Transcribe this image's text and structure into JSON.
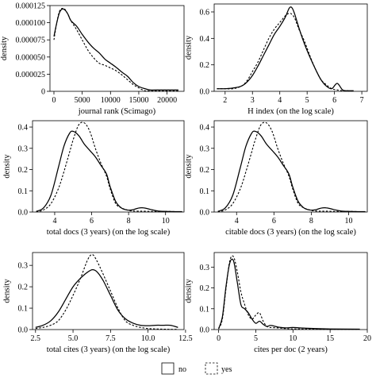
{
  "legend": {
    "placement": "bottom-center",
    "entries": [
      {
        "label": "no",
        "linestyle": "solid"
      },
      {
        "label": "yes",
        "linestyle": "dashed"
      }
    ]
  },
  "chart_data": [
    {
      "type": "line",
      "xlabel": "journal rank (Scimago)",
      "ylabel": "density",
      "xlim": [
        -700,
        23000
      ],
      "ylim": [
        0,
        0.000125
      ],
      "xticks": [
        0,
        5000,
        10000,
        15000,
        20000
      ],
      "xtick_labels": [
        "0",
        "5000",
        "10000",
        "15000",
        "20000"
      ],
      "yticks": [
        0,
        2.5e-05,
        5e-05,
        7.5e-05,
        0.0001,
        0.000125
      ],
      "ytick_labels": [
        "0",
        "0.000025",
        "0.000050",
        "0.000075",
        "0.000100",
        "0.000125"
      ],
      "series": [
        {
          "name": "no",
          "linestyle": "solid",
          "x": [
            0,
            500,
            1000,
            1500,
            2000,
            2500,
            3000,
            4000,
            5000,
            6000,
            7000,
            8000,
            9000,
            10000,
            11000,
            12000,
            13000,
            14000,
            15000,
            16000,
            17000,
            18000,
            19000,
            20000,
            21000,
            22000
          ],
          "y": [
            8e-05,
            0.0001,
            0.000115,
            0.00012,
            0.000118,
            0.000112,
            0.000103,
            9.5e-05,
            8.3e-05,
            7.2e-05,
            6.3e-05,
            5.6e-05,
            4.7e-05,
            4.1e-05,
            3.5e-05,
            2.8e-05,
            2.2e-05,
            1.3e-05,
            7e-06,
            4e-06,
            2e-06,
            2e-06,
            2e-06,
            2e-06,
            2e-06,
            2e-06
          ]
        },
        {
          "name": "yes",
          "linestyle": "dashed",
          "x": [
            0,
            500,
            1000,
            1500,
            2000,
            2500,
            3000,
            4000,
            5000,
            6000,
            7000,
            8000,
            9000,
            10000,
            11000,
            12000,
            13000,
            14000,
            15000,
            16000,
            17000,
            18000,
            19000,
            20000,
            21000,
            22000
          ],
          "y": [
            7.5e-05,
            0.0001,
            0.000117,
            0.000121,
            0.000119,
            0.000112,
            0.000103,
            9e-05,
            7.5e-05,
            6e-05,
            4.9e-05,
            4.1e-05,
            3.8e-05,
            3.4e-05,
            3e-05,
            2.4e-05,
            1.7e-05,
            1e-05,
            5e-06,
            1e-06,
            5e-07,
            5e-07,
            5e-07,
            5e-07,
            5e-07,
            5e-07
          ]
        }
      ]
    },
    {
      "type": "line",
      "xlabel": "H index (on the log scale)",
      "ylabel": "density",
      "xlim": [
        1.6,
        7.2
      ],
      "ylim": [
        0,
        0.66
      ],
      "xticks": [
        2,
        3,
        4,
        5,
        6,
        7
      ],
      "xtick_labels": [
        "2",
        "3",
        "4",
        "5",
        "6",
        "7"
      ],
      "yticks": [
        0,
        0.2,
        0.4,
        0.6
      ],
      "ytick_labels": [
        "0.0",
        "0.2",
        "0.4",
        "0.6"
      ],
      "series": [
        {
          "name": "no",
          "linestyle": "solid",
          "x": [
            1.7,
            2.0,
            2.3,
            2.6,
            2.8,
            3.0,
            3.2,
            3.4,
            3.6,
            3.8,
            4.0,
            4.2,
            4.35,
            4.45,
            4.55,
            4.7,
            4.9,
            5.1,
            5.3,
            5.5,
            5.7,
            5.9,
            6.1,
            6.3,
            6.5,
            6.7
          ],
          "y": [
            0.02,
            0.02,
            0.025,
            0.04,
            0.07,
            0.12,
            0.19,
            0.27,
            0.35,
            0.43,
            0.49,
            0.56,
            0.63,
            0.63,
            0.58,
            0.48,
            0.36,
            0.26,
            0.17,
            0.09,
            0.04,
            0.02,
            0.06,
            0.01,
            0.005,
            0.005
          ]
        },
        {
          "name": "yes",
          "linestyle": "dashed",
          "x": [
            1.7,
            2.0,
            2.3,
            2.6,
            2.8,
            3.0,
            3.2,
            3.4,
            3.6,
            3.8,
            4.0,
            4.2,
            4.35,
            4.45,
            4.55,
            4.7,
            4.9,
            5.1,
            5.3,
            5.5,
            5.7,
            5.9,
            6.1,
            6.3,
            6.5,
            6.7
          ],
          "y": [
            0.02,
            0.02,
            0.02,
            0.04,
            0.08,
            0.15,
            0.22,
            0.31,
            0.4,
            0.47,
            0.52,
            0.57,
            0.59,
            0.58,
            0.55,
            0.47,
            0.38,
            0.27,
            0.17,
            0.09,
            0.05,
            0.02,
            0.01,
            0.005,
            0.003,
            0.003
          ]
        }
      ]
    },
    {
      "type": "line",
      "xlabel": "total docs (3 years) (on the log scale)",
      "ylabel": "density",
      "xlim": [
        2.8,
        11
      ],
      "ylim": [
        0,
        0.43
      ],
      "xticks": [
        4,
        6,
        8,
        10
      ],
      "xtick_labels": [
        "4",
        "6",
        "8",
        "10"
      ],
      "yticks": [
        0,
        0.1,
        0.2,
        0.3,
        0.4
      ],
      "ytick_labels": [
        "0.0",
        "0.1",
        "0.2",
        "0.3",
        "0.4"
      ],
      "series": [
        {
          "name": "no",
          "linestyle": "solid",
          "x": [
            3.0,
            3.4,
            3.8,
            4.2,
            4.5,
            4.8,
            5.0,
            5.3,
            5.6,
            5.9,
            6.2,
            6.5,
            6.8,
            7.0,
            7.3,
            7.6,
            7.9,
            8.2,
            8.5,
            8.8,
            9.2,
            9.6,
            10.0,
            10.5,
            10.9
          ],
          "y": [
            0.003,
            0.02,
            0.08,
            0.21,
            0.31,
            0.37,
            0.38,
            0.36,
            0.32,
            0.29,
            0.26,
            0.22,
            0.18,
            0.12,
            0.05,
            0.02,
            0.01,
            0.01,
            0.018,
            0.02,
            0.012,
            0.005,
            0.003,
            0.002,
            0.002
          ]
        },
        {
          "name": "yes",
          "linestyle": "dashed",
          "x": [
            3.0,
            3.4,
            3.8,
            4.2,
            4.5,
            4.8,
            5.0,
            5.3,
            5.6,
            5.9,
            6.2,
            6.5,
            6.8,
            7.0,
            7.3,
            7.6,
            7.9,
            8.2,
            8.5,
            8.8,
            9.2,
            9.6,
            10.0,
            10.5,
            10.9
          ],
          "y": [
            0.001,
            0.01,
            0.04,
            0.11,
            0.19,
            0.28,
            0.34,
            0.41,
            0.42,
            0.38,
            0.3,
            0.23,
            0.17,
            0.11,
            0.04,
            0.02,
            0.01,
            0.005,
            0.004,
            0.004,
            0.003,
            0.003,
            0.003,
            0.002,
            0.002
          ]
        }
      ]
    },
    {
      "type": "line",
      "xlabel": "citable docs (3 years) (on the log scale)",
      "ylabel": "density",
      "xlim": [
        2.8,
        11
      ],
      "ylim": [
        0,
        0.43
      ],
      "xticks": [
        4,
        6,
        8,
        10
      ],
      "xtick_labels": [
        "4",
        "6",
        "8",
        "10"
      ],
      "yticks": [
        0,
        0.1,
        0.2,
        0.3,
        0.4
      ],
      "ytick_labels": [
        "0.0",
        "0.1",
        "0.2",
        "0.3",
        "0.4"
      ],
      "series": [
        {
          "name": "no",
          "linestyle": "solid",
          "x": [
            3.0,
            3.4,
            3.8,
            4.2,
            4.5,
            4.8,
            5.0,
            5.3,
            5.6,
            5.9,
            6.2,
            6.5,
            6.8,
            7.0,
            7.3,
            7.6,
            7.9,
            8.2,
            8.5,
            8.8,
            9.2,
            9.6,
            10.0,
            10.5,
            10.9
          ],
          "y": [
            0.003,
            0.02,
            0.08,
            0.21,
            0.31,
            0.37,
            0.38,
            0.36,
            0.32,
            0.29,
            0.26,
            0.22,
            0.18,
            0.12,
            0.05,
            0.02,
            0.01,
            0.01,
            0.018,
            0.02,
            0.012,
            0.005,
            0.003,
            0.002,
            0.002
          ]
        },
        {
          "name": "yes",
          "linestyle": "dashed",
          "x": [
            3.0,
            3.4,
            3.8,
            4.2,
            4.5,
            4.8,
            5.0,
            5.3,
            5.6,
            5.9,
            6.2,
            6.5,
            6.8,
            7.0,
            7.3,
            7.6,
            7.9,
            8.2,
            8.5,
            8.8,
            9.2,
            9.6,
            10.0,
            10.5,
            10.9
          ],
          "y": [
            0.001,
            0.01,
            0.04,
            0.11,
            0.19,
            0.28,
            0.34,
            0.41,
            0.42,
            0.38,
            0.3,
            0.23,
            0.17,
            0.11,
            0.04,
            0.02,
            0.01,
            0.005,
            0.004,
            0.004,
            0.003,
            0.003,
            0.003,
            0.002,
            0.002
          ]
        }
      ]
    },
    {
      "type": "line",
      "xlabel": "total cites (3 years) (on the log scale)",
      "ylabel": "density",
      "xlim": [
        2.3,
        12.4
      ],
      "ylim": [
        0,
        0.36
      ],
      "xticks": [
        2.5,
        5.0,
        7.5,
        10.0,
        12.5
      ],
      "xtick_labels": [
        "2.5",
        "5.0",
        "7.5",
        "10.0",
        "12.5"
      ],
      "yticks": [
        0,
        0.1,
        0.2,
        0.3
      ],
      "ytick_labels": [
        "0.0",
        "0.1",
        "0.2",
        "0.3"
      ],
      "series": [
        {
          "name": "no",
          "linestyle": "solid",
          "x": [
            2.5,
            3.0,
            3.5,
            4.0,
            4.5,
            5.0,
            5.5,
            6.0,
            6.3,
            6.6,
            7.0,
            7.5,
            8.0,
            8.5,
            9.0,
            9.5,
            10.0,
            10.5,
            11.0,
            11.5,
            12.0
          ],
          "y": [
            0.01,
            0.02,
            0.04,
            0.08,
            0.14,
            0.2,
            0.24,
            0.27,
            0.28,
            0.27,
            0.23,
            0.16,
            0.09,
            0.05,
            0.03,
            0.02,
            0.018,
            0.02,
            0.02,
            0.02,
            0.01
          ]
        },
        {
          "name": "yes",
          "linestyle": "dashed",
          "x": [
            2.5,
            3.0,
            3.5,
            4.0,
            4.5,
            5.0,
            5.5,
            6.0,
            6.3,
            6.6,
            7.0,
            7.5,
            8.0,
            8.5,
            9.0,
            9.5,
            10.0,
            10.5,
            11.0,
            11.5,
            12.0
          ],
          "y": [
            0.005,
            0.01,
            0.02,
            0.04,
            0.09,
            0.16,
            0.24,
            0.33,
            0.35,
            0.32,
            0.26,
            0.18,
            0.1,
            0.04,
            0.02,
            0.01,
            0.005,
            0.003,
            0.002,
            0.001,
            0.001
          ]
        }
      ]
    },
    {
      "type": "line",
      "xlabel": "cites per doc (2 years)",
      "ylabel": "density",
      "xlim": [
        -0.6,
        20
      ],
      "ylim": [
        0,
        0.37
      ],
      "xticks": [
        0,
        5,
        10,
        15,
        20
      ],
      "xtick_labels": [
        "0",
        "5",
        "10",
        "15",
        "20"
      ],
      "yticks": [
        0,
        0.1,
        0.2,
        0.3
      ],
      "ytick_labels": [
        "0.0",
        "0.1",
        "0.2",
        "0.3"
      ],
      "series": [
        {
          "name": "no",
          "linestyle": "solid",
          "x": [
            0.0,
            0.5,
            1.0,
            1.5,
            2.0,
            2.5,
            3.0,
            3.5,
            4.0,
            4.5,
            5.0,
            5.5,
            6.0,
            6.5,
            7.0,
            8.0,
            9.0,
            10.0,
            12.0,
            15.0,
            19.0
          ],
          "y": [
            0.005,
            0.06,
            0.21,
            0.32,
            0.33,
            0.23,
            0.12,
            0.1,
            0.08,
            0.05,
            0.03,
            0.04,
            0.025,
            0.015,
            0.02,
            0.012,
            0.008,
            0.01,
            0.006,
            0.003,
            0.002
          ]
        },
        {
          "name": "yes",
          "linestyle": "dashed",
          "x": [
            0.0,
            0.5,
            1.0,
            1.5,
            2.0,
            2.5,
            3.0,
            3.5,
            4.0,
            4.5,
            5.0,
            5.5,
            6.0,
            6.5,
            7.0,
            8.0,
            9.0,
            10.0,
            12.0,
            15.0,
            19.0
          ],
          "y": [
            0.003,
            0.05,
            0.2,
            0.33,
            0.35,
            0.28,
            0.18,
            0.12,
            0.07,
            0.05,
            0.07,
            0.08,
            0.04,
            0.015,
            0.01,
            0.008,
            0.005,
            0.003,
            0.002,
            0.001,
            0.001
          ]
        }
      ]
    }
  ]
}
